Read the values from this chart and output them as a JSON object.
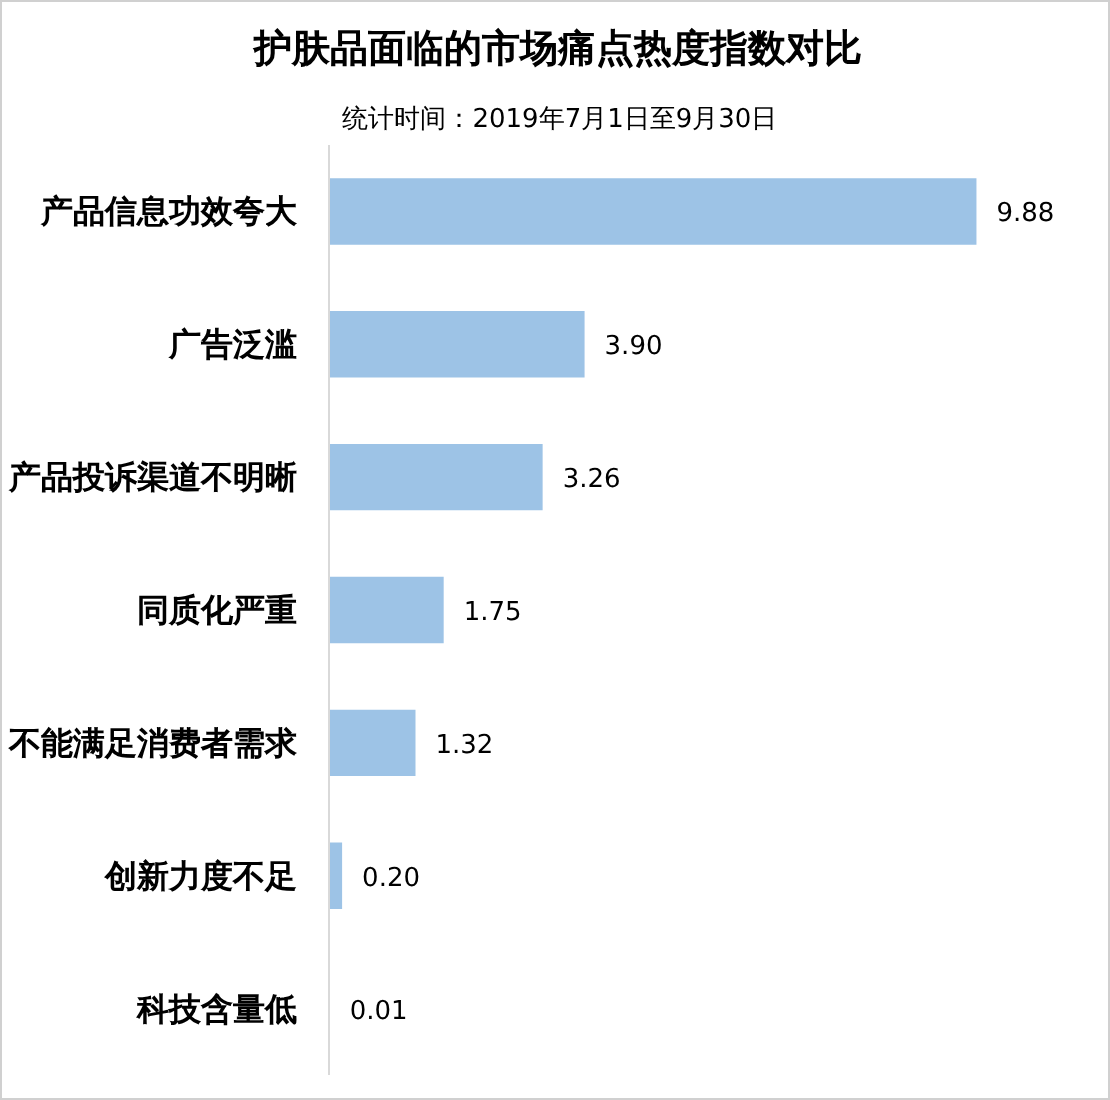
{
  "chart_data": {
    "type": "bar",
    "orientation": "horizontal",
    "title": "护肤品面临的市场痛点热度指数对比",
    "subtitle": "统计时间：2019年7月1日至9月30日",
    "categories": [
      "产品信息功效夸大",
      "广告泛滥",
      "产品投诉渠道不明晰",
      "同质化严重",
      "不能满足消费者需求",
      "创新力度不足",
      "科技含量低"
    ],
    "values": [
      9.88,
      3.9,
      3.26,
      1.75,
      1.32,
      0.2,
      0.01
    ],
    "value_labels": [
      "9.88",
      "3.90",
      "3.26",
      "1.75",
      "1.32",
      "0.20",
      "0.01"
    ],
    "color": "#9dc3e6",
    "tick_labels": "y"
  }
}
